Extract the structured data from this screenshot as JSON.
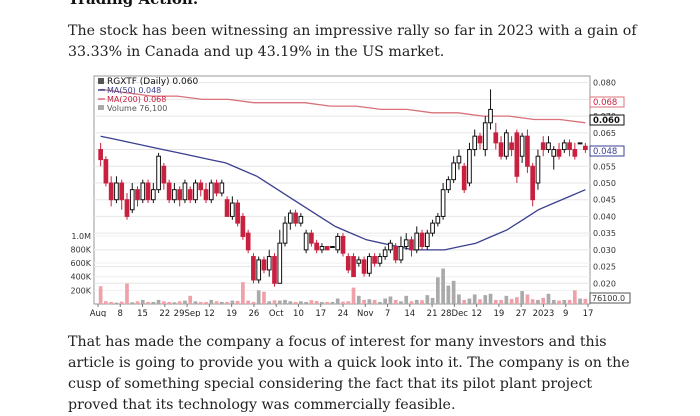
{
  "article": {
    "heading": "Trading Action:",
    "paragraph1": "The stock has been witnessing an impressive rally so far in 2023 with a gain of 33.33% in Canada and up 43.19% in the US market.",
    "paragraph2": "That has made the company a focus of interest for many investors and this article is going to provide you with a quick look into it. The company is on the cusp of something special considering the fact that its pilot plant project proved that its technology was commercially feasible."
  },
  "chart_data": {
    "type": "candlestick",
    "legend": {
      "symbol": "RGXTF (Daily) 0.060",
      "ma50": "MA(50) 0.048",
      "ma200": "MA(200) 0.068",
      "volume": "Volume 76,100"
    },
    "colors": {
      "up": "#111111",
      "down": "#c8203f",
      "ma50": "#3a3f8f",
      "ma200": "#d9707a",
      "vol_up": "#aaaaaa",
      "vol_down": "#f0a0a8"
    },
    "price_ticks": [
      "0.080",
      "0.075",
      "0.070",
      "0.065",
      "0.060",
      "0.055",
      "0.050",
      "0.045",
      "0.040",
      "0.035",
      "0.030",
      "0.025",
      "0.020"
    ],
    "price_badges": {
      "ma200": "0.068",
      "last": "0.060",
      "ma50": "0.048",
      "volume": "76100.0"
    },
    "volume_ticks": [
      "1.0M",
      "800K",
      "600K",
      "400K",
      "200K"
    ],
    "x_ticks": [
      "Aug",
      "8",
      "15",
      "22",
      "29Sep",
      "12",
      "19",
      "26",
      "Oct",
      "10",
      "17",
      "24",
      "Nov",
      "7",
      "14",
      "21",
      "28Dec",
      "12",
      "19",
      "27",
      "2023",
      "9",
      "17"
    ],
    "ylim": [
      0.015,
      0.082
    ],
    "candles": [
      [
        0.06,
        0.057,
        0.062,
        0.055
      ],
      [
        0.057,
        0.05,
        0.058,
        0.049
      ],
      [
        0.05,
        0.045,
        0.052,
        0.043
      ],
      [
        0.045,
        0.05,
        0.052,
        0.044
      ],
      [
        0.05,
        0.045,
        0.051,
        0.042
      ],
      [
        0.045,
        0.04,
        0.047,
        0.039
      ],
      [
        0.042,
        0.048,
        0.05,
        0.041
      ],
      [
        0.048,
        0.045,
        0.049,
        0.043
      ],
      [
        0.045,
        0.05,
        0.051,
        0.044
      ],
      [
        0.05,
        0.045,
        0.051,
        0.044
      ],
      [
        0.045,
        0.048,
        0.05,
        0.044
      ],
      [
        0.048,
        0.058,
        0.059,
        0.047
      ],
      [
        0.055,
        0.05,
        0.056,
        0.048
      ],
      [
        0.05,
        0.045,
        0.051,
        0.044
      ],
      [
        0.045,
        0.048,
        0.05,
        0.044
      ],
      [
        0.048,
        0.045,
        0.049,
        0.043
      ],
      [
        0.045,
        0.05,
        0.051,
        0.044
      ],
      [
        0.048,
        0.045,
        0.049,
        0.044
      ],
      [
        0.045,
        0.05,
        0.051,
        0.044
      ],
      [
        0.05,
        0.048,
        0.051,
        0.046
      ],
      [
        0.048,
        0.045,
        0.05,
        0.044
      ],
      [
        0.045,
        0.05,
        0.051,
        0.044
      ],
      [
        0.05,
        0.047,
        0.051,
        0.046
      ],
      [
        0.047,
        0.05,
        0.051,
        0.046
      ],
      [
        0.045,
        0.04,
        0.046,
        0.04
      ],
      [
        0.04,
        0.044,
        0.046,
        0.039
      ],
      [
        0.044,
        0.038,
        0.045,
        0.037
      ],
      [
        0.04,
        0.034,
        0.041,
        0.033
      ],
      [
        0.035,
        0.03,
        0.036,
        0.029
      ],
      [
        0.028,
        0.021,
        0.029,
        0.02
      ],
      [
        0.021,
        0.027,
        0.028,
        0.02
      ],
      [
        0.027,
        0.024,
        0.028,
        0.023
      ],
      [
        0.024,
        0.028,
        0.03,
        0.022
      ],
      [
        0.028,
        0.02,
        0.029,
        0.019
      ],
      [
        0.02,
        0.032,
        0.036,
        0.02
      ],
      [
        0.032,
        0.038,
        0.04,
        0.031
      ],
      [
        0.038,
        0.041,
        0.042,
        0.036
      ],
      [
        0.041,
        0.038,
        0.042,
        0.037
      ],
      [
        0.038,
        0.04,
        0.041,
        0.037
      ],
      [
        0.03,
        0.035,
        0.036,
        0.029
      ],
      [
        0.035,
        0.032,
        0.036,
        0.031
      ],
      [
        0.032,
        0.03,
        0.033,
        0.029
      ],
      [
        0.03,
        0.031,
        0.032,
        0.029
      ],
      [
        0.031,
        0.03,
        0.031,
        0.03
      ],
      [
        0.031,
        0.031,
        0.031,
        0.031
      ],
      [
        0.03,
        0.034,
        0.035,
        0.029
      ],
      [
        0.034,
        0.029,
        0.035,
        0.028
      ],
      [
        0.028,
        0.024,
        0.029,
        0.023
      ],
      [
        0.028,
        0.022,
        0.029,
        0.022
      ],
      [
        0.026,
        0.027,
        0.028,
        0.025
      ],
      [
        0.027,
        0.023,
        0.028,
        0.022
      ],
      [
        0.023,
        0.028,
        0.029,
        0.022
      ],
      [
        0.028,
        0.026,
        0.029,
        0.025
      ],
      [
        0.026,
        0.028,
        0.029,
        0.025
      ],
      [
        0.028,
        0.03,
        0.031,
        0.027
      ],
      [
        0.03,
        0.032,
        0.033,
        0.029
      ],
      [
        0.031,
        0.027,
        0.032,
        0.026
      ],
      [
        0.027,
        0.031,
        0.034,
        0.026
      ],
      [
        0.031,
        0.033,
        0.035,
        0.03
      ],
      [
        0.033,
        0.03,
        0.034,
        0.028
      ],
      [
        0.03,
        0.035,
        0.037,
        0.029
      ],
      [
        0.035,
        0.031,
        0.036,
        0.03
      ],
      [
        0.031,
        0.035,
        0.036,
        0.03
      ],
      [
        0.035,
        0.038,
        0.039,
        0.034
      ],
      [
        0.038,
        0.04,
        0.041,
        0.037
      ],
      [
        0.04,
        0.048,
        0.05,
        0.039
      ],
      [
        0.048,
        0.051,
        0.052,
        0.047
      ],
      [
        0.051,
        0.056,
        0.058,
        0.05
      ],
      [
        0.056,
        0.058,
        0.06,
        0.054
      ],
      [
        0.055,
        0.048,
        0.056,
        0.047
      ],
      [
        0.05,
        0.06,
        0.062,
        0.049
      ],
      [
        0.06,
        0.064,
        0.066,
        0.058
      ],
      [
        0.064,
        0.062,
        0.065,
        0.06
      ],
      [
        0.06,
        0.068,
        0.07,
        0.058
      ],
      [
        0.068,
        0.072,
        0.078,
        0.066
      ],
      [
        0.065,
        0.062,
        0.068,
        0.06
      ],
      [
        0.062,
        0.058,
        0.064,
        0.057
      ],
      [
        0.058,
        0.065,
        0.066,
        0.057
      ],
      [
        0.062,
        0.06,
        0.064,
        0.058
      ],
      [
        0.065,
        0.052,
        0.066,
        0.05
      ],
      [
        0.058,
        0.064,
        0.065,
        0.056
      ],
      [
        0.064,
        0.055,
        0.066,
        0.053
      ],
      [
        0.055,
        0.045,
        0.056,
        0.043
      ],
      [
        0.05,
        0.058,
        0.06,
        0.048
      ],
      [
        0.062,
        0.06,
        0.064,
        0.058
      ],
      [
        0.06,
        0.062,
        0.064,
        0.059
      ],
      [
        0.058,
        0.06,
        0.061,
        0.054
      ],
      [
        0.06,
        0.058,
        0.062,
        0.057
      ],
      [
        0.06,
        0.062,
        0.063,
        0.059
      ],
      [
        0.062,
        0.06,
        0.063,
        0.058
      ],
      [
        0.06,
        0.058,
        0.062,
        0.057
      ],
      [
        0.062,
        0.062,
        0.062,
        0.062
      ],
      [
        0.061,
        0.06,
        0.062,
        0.059
      ]
    ],
    "volumes": [
      260,
      40,
      30,
      20,
      35,
      300,
      25,
      40,
      60,
      30,
      30,
      60,
      40,
      30,
      25,
      40,
      50,
      120,
      40,
      30,
      30,
      60,
      40,
      30,
      30,
      50,
      45,
      320,
      50,
      30,
      200,
      180,
      40,
      55,
      50,
      60,
      40,
      30,
      40,
      30,
      55,
      45,
      30,
      30,
      30,
      80,
      35,
      40,
      240,
      120,
      60,
      70,
      60,
      30,
      80,
      110,
      60,
      40,
      120,
      40,
      60,
      55,
      130,
      90,
      390,
      520,
      270,
      340,
      140,
      60,
      80,
      140,
      70,
      130,
      150,
      60,
      60,
      120,
      75,
      100,
      190,
      140,
      70,
      60,
      90,
      150,
      60,
      50,
      60,
      60,
      200,
      80,
      76
    ],
    "ma50": [
      0.064,
      0.063,
      0.062,
      0.061,
      0.06,
      0.059,
      0.058,
      0.057,
      0.056,
      0.054,
      0.052,
      0.049,
      0.046,
      0.043,
      0.04,
      0.037,
      0.035,
      0.033,
      0.032,
      0.031,
      0.03,
      0.03,
      0.03,
      0.031,
      0.032,
      0.034,
      0.036,
      0.039,
      0.042,
      0.044,
      0.046,
      0.048
    ],
    "ma200": [
      0.078,
      0.077,
      0.076,
      0.076,
      0.075,
      0.075,
      0.074,
      0.074,
      0.074,
      0.073,
      0.073,
      0.072,
      0.072,
      0.071,
      0.071,
      0.07,
      0.07,
      0.069,
      0.069,
      0.068
    ]
  }
}
